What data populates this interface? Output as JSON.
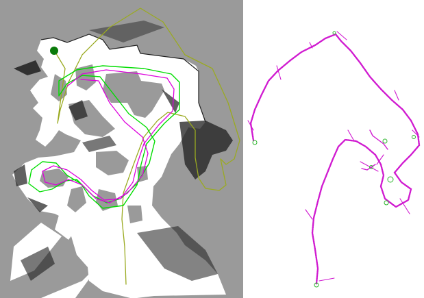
{
  "figure": {
    "panels": [
      {
        "id": "occupancy-map-with-trajectories",
        "map_colors": {
          "unknown": "#9a9a9a",
          "free": "#ffffff",
          "occupied": "#1e1e1e"
        },
        "trajectory_colors": [
          "#00dd00",
          "#dd00dd",
          "#9aaa20"
        ],
        "start_marker_color": "#0a7a0a"
      },
      {
        "id": "pose-graph",
        "colors": {
          "magenta": "#d01ad0",
          "green": "#2bb52b"
        }
      }
    ]
  }
}
